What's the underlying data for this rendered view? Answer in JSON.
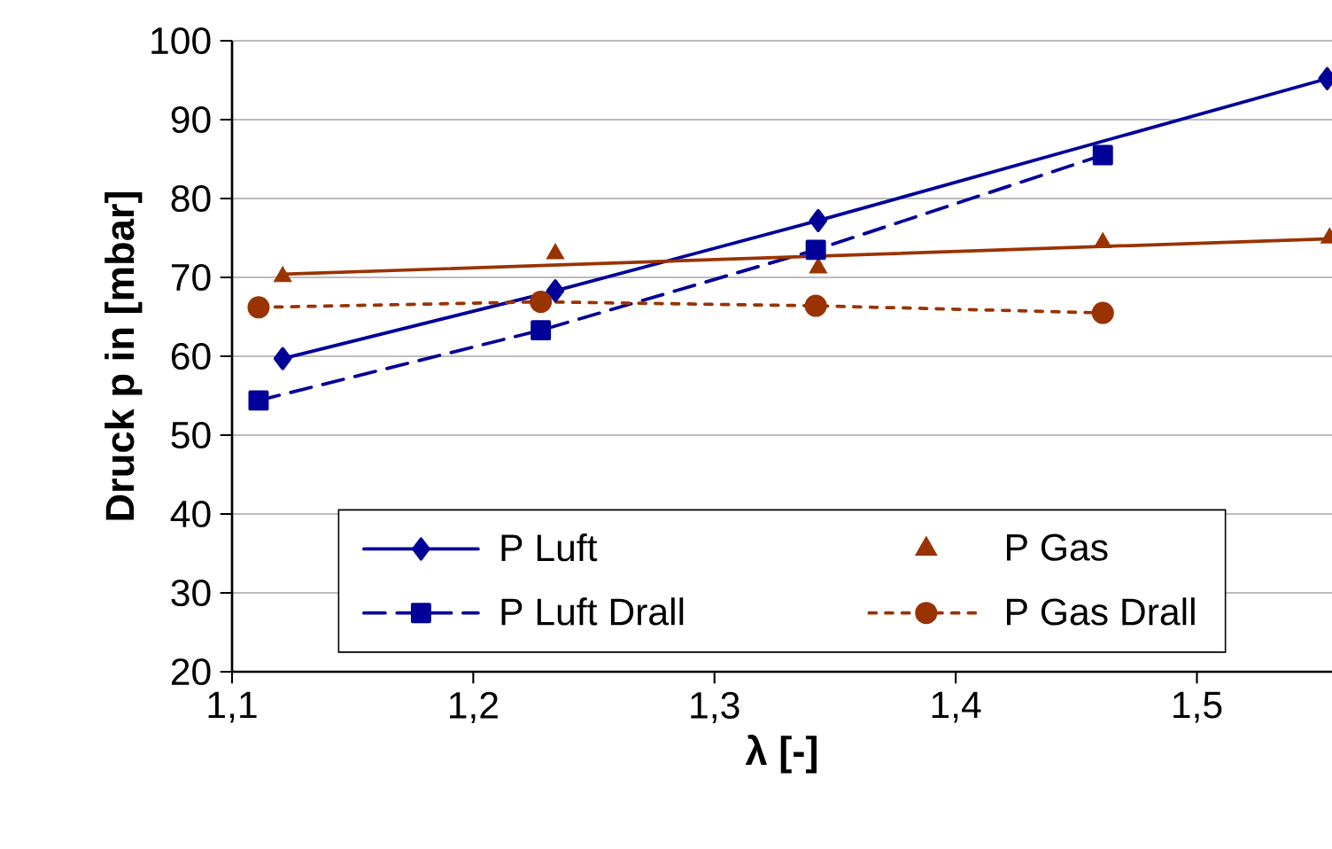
{
  "chart_data": {
    "type": "line",
    "xlabel": "λ [-]",
    "ylabel": "Druck p in [mbar]",
    "xlim": [
      1.1,
      1.556
    ],
    "ylim": [
      20,
      100
    ],
    "xticks": [
      {
        "value": 1.1,
        "label": "1,1"
      },
      {
        "value": 1.2,
        "label": "1,2"
      },
      {
        "value": 1.3,
        "label": "1,3"
      },
      {
        "value": 1.4,
        "label": "1,4"
      },
      {
        "value": 1.5,
        "label": "1,5"
      }
    ],
    "yticks": [
      20,
      30,
      40,
      50,
      60,
      70,
      80,
      90,
      100
    ],
    "grid": "y",
    "legend": "bottom",
    "series": [
      {
        "name": "P Luft",
        "color": "#000099",
        "marker": "diamond",
        "line_style": "solid",
        "x": [
          1.121,
          1.234,
          1.343,
          1.461,
          1.554
        ],
        "values": [
          59.7,
          68.3,
          77.2,
          null,
          95.2
        ]
      },
      {
        "name": "P Gas",
        "type": "scatter",
        "color": "#993300",
        "marker": "triangle",
        "x": [
          1.121,
          1.234,
          1.343,
          1.461,
          1.555
        ],
        "values": [
          70.1,
          73.0,
          71.2,
          74.4,
          75.0
        ]
      },
      {
        "name": "P Luft Drall",
        "color": "#000099",
        "marker": "square",
        "line_style": "dashed",
        "x": [
          1.111,
          1.228,
          1.342,
          1.461
        ],
        "values": [
          54.4,
          63.3,
          73.5,
          85.5
        ]
      },
      {
        "name": "P Gas Drall",
        "color": "#993300",
        "marker": "circle",
        "line_style": "dotted",
        "x": [
          1.111,
          1.228,
          1.342,
          1.461
        ],
        "values": [
          66.2,
          66.9,
          66.4,
          65.5
        ]
      },
      {
        "color": "#993300",
        "line_style": "solid",
        "x": [
          1.121,
          1.556
        ],
        "values": [
          70.4,
          74.9
        ]
      }
    ]
  }
}
